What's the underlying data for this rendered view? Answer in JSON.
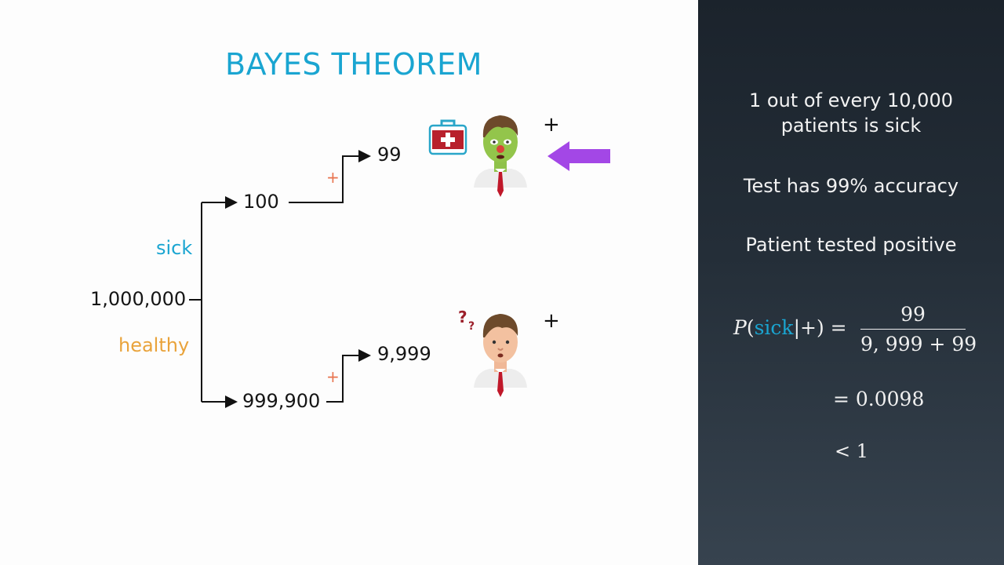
{
  "title": "BAYES THEOREM",
  "tree": {
    "root": "1,000,000",
    "sick_label": "sick",
    "healthy_label": "healthy",
    "sick_count": "100",
    "healthy_count": "999,900",
    "sick_positive": "99",
    "healthy_positive": "9,999",
    "plus": "+"
  },
  "colors": {
    "title": "#1aa5d1",
    "sick": "#1aa5d1",
    "healthy": "#e9a33b",
    "plus": "#e8734e",
    "arrow": "#a347e6"
  },
  "icons": [
    "first-aid-kit-icon",
    "sick-patient-icon",
    "healthy-patient-icon",
    "question-marks-icon",
    "pointer-arrow-icon"
  ],
  "facts": {
    "line1": "1 out of every 10,000",
    "line2": "patients is sick",
    "accuracy": "Test has 99% accuracy",
    "positive": "Patient tested positive"
  },
  "formula": {
    "lhs_p": "P",
    "lhs_open": "(",
    "lhs_sick": "sick",
    "lhs_rest": "|+) =",
    "numerator": "99",
    "denominator": "9, 999 + 99",
    "result": "= 0.0098",
    "compare": "< 1"
  }
}
